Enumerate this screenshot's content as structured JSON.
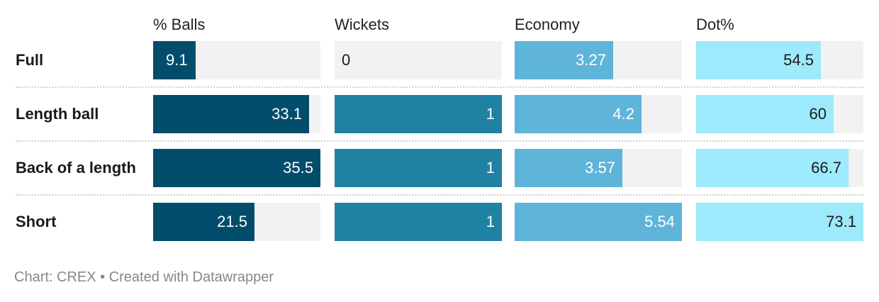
{
  "chart_data": {
    "type": "table",
    "columns": [
      {
        "name": "% Balls",
        "max": 35.5,
        "color": "#024d6c",
        "text_color": "#ffffff"
      },
      {
        "name": "Wickets",
        "max": 1,
        "color": "#1f82a3",
        "text_color": "#ffffff"
      },
      {
        "name": "Economy",
        "max": 5.54,
        "color": "#5fb4d9",
        "text_color": "#ffffff"
      },
      {
        "name": "Dot%",
        "max": 73.1,
        "color": "#9ceafc",
        "text_color": "#1a1a1a"
      }
    ],
    "rows": [
      {
        "label": "Full",
        "values": [
          9.1,
          0,
          3.27,
          54.5
        ],
        "display": [
          "9.1",
          "0",
          "3.27",
          "54.5"
        ]
      },
      {
        "label": "Length ball",
        "values": [
          33.1,
          1,
          4.2,
          60
        ],
        "display": [
          "33.1",
          "1",
          "4.2",
          "60"
        ]
      },
      {
        "label": "Back of a length",
        "values": [
          35.5,
          1,
          3.57,
          66.7
        ],
        "display": [
          "35.5",
          "1",
          "3.57",
          "66.7"
        ]
      },
      {
        "label": "Short",
        "values": [
          21.5,
          1,
          5.54,
          73.1
        ],
        "display": [
          "21.5",
          "1",
          "5.54",
          "73.1"
        ]
      }
    ]
  },
  "footer": {
    "text": "Chart: CREX • Created with Datawrapper"
  }
}
